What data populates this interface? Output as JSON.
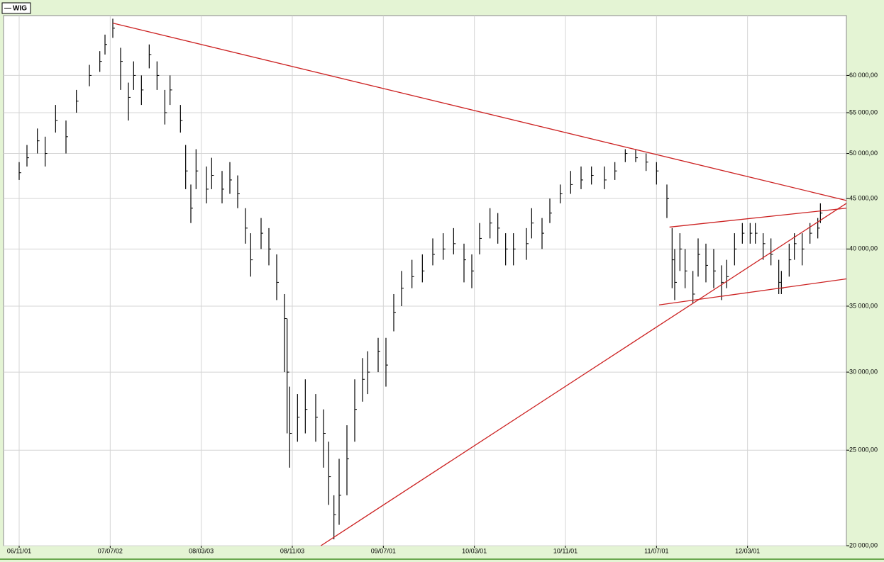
{
  "chart_data": {
    "type": "hlc",
    "name": "WIG",
    "color": "#000000",
    "log_scale": true,
    "grid": true,
    "legend": "top-left",
    "x": [
      0,
      3,
      7,
      10,
      14,
      18,
      22,
      27,
      31,
      33,
      36,
      39,
      42,
      44,
      47,
      50,
      53,
      56,
      58,
      62,
      64,
      66,
      68,
      72,
      74,
      78,
      81,
      84,
      87,
      89,
      93,
      96,
      99,
      102,
      103,
      104,
      107,
      110,
      114,
      117,
      119,
      121,
      123,
      126,
      129,
      132,
      134,
      138,
      141,
      144,
      147,
      151,
      155,
      159,
      163,
      167,
      171,
      174,
      177,
      181,
      184,
      187,
      190,
      195,
      197,
      201,
      204,
      208,
      212,
      216,
      220,
      225,
      229,
      233,
      237,
      241,
      245,
      249,
      251,
      252,
      254,
      256,
      259,
      261,
      264,
      267,
      270,
      272,
      275,
      278,
      281,
      283,
      286,
      289,
      292,
      293,
      296,
      298,
      301,
      304,
      307,
      308
    ],
    "high": [
      49000,
      51000,
      53000,
      52000,
      56000,
      54000,
      58000,
      61500,
      63500,
      66000,
      68500,
      64000,
      59000,
      62000,
      60000,
      64500,
      62000,
      58000,
      60000,
      56000,
      51000,
      46500,
      50500,
      48500,
      49500,
      48000,
      49000,
      47500,
      44000,
      41500,
      43000,
      42000,
      39500,
      36000,
      34000,
      29000,
      28500,
      29500,
      28500,
      27500,
      25500,
      22500,
      24500,
      26500,
      29500,
      31000,
      31500,
      32500,
      32500,
      36000,
      38000,
      39000,
      39500,
      41000,
      41500,
      42000,
      40500,
      39500,
      42500,
      44000,
      43500,
      41500,
      41500,
      42000,
      44000,
      43000,
      45000,
      46500,
      48000,
      48500,
      48500,
      48500,
      49000,
      50500,
      50500,
      50000,
      49000,
      46500,
      42000,
      40000,
      41500,
      40000,
      38000,
      41000,
      40500,
      40000,
      38500,
      39000,
      41500,
      42500,
      42500,
      42500,
      41500,
      41000,
      39000,
      38000,
      40500,
      41500,
      41500,
      42500,
      43000,
      44500
    ],
    "low": [
      47000,
      48500,
      50000,
      48500,
      52500,
      50000,
      55000,
      58500,
      60500,
      63000,
      65500,
      58000,
      54000,
      58000,
      56000,
      61000,
      58000,
      53500,
      56000,
      52500,
      46000,
      42500,
      46000,
      44500,
      46000,
      44500,
      45500,
      44000,
      40500,
      37500,
      40000,
      38500,
      35500,
      30000,
      26000,
      24000,
      25500,
      26000,
      25500,
      24000,
      22000,
      20300,
      21000,
      22500,
      25500,
      28000,
      28500,
      30000,
      29000,
      33000,
      35000,
      36500,
      37000,
      38500,
      39000,
      39500,
      37000,
      36500,
      39500,
      41000,
      40500,
      38500,
      38500,
      39000,
      41000,
      40000,
      42500,
      44500,
      45500,
      46000,
      46500,
      46000,
      47000,
      49000,
      49000,
      48000,
      46500,
      43000,
      36500,
      35500,
      38000,
      36500,
      35200,
      37500,
      37000,
      36500,
      35500,
      36500,
      38500,
      40500,
      40500,
      40500,
      39000,
      38500,
      36000,
      36000,
      37500,
      39000,
      38500,
      40500,
      41000,
      42500
    ],
    "close": [
      47800,
      49500,
      51500,
      50000,
      54000,
      52000,
      56500,
      60000,
      62000,
      64500,
      67000,
      62000,
      57000,
      60000,
      58000,
      63000,
      60000,
      55000,
      58000,
      54000,
      48000,
      44000,
      48000,
      46000,
      47500,
      46000,
      47000,
      45500,
      42000,
      39000,
      41500,
      40000,
      37000,
      34000,
      30000,
      26000,
      27000,
      27500,
      27000,
      26000,
      23500,
      21500,
      22500,
      24500,
      27500,
      29500,
      30000,
      31500,
      30500,
      34500,
      36500,
      37500,
      38000,
      39500,
      40000,
      40500,
      39000,
      38000,
      41000,
      42500,
      42000,
      40000,
      40000,
      40500,
      42500,
      41500,
      43500,
      45500,
      46500,
      47000,
      47500,
      47000,
      48000,
      50000,
      49500,
      49000,
      48000,
      45000,
      39000,
      37000,
      40000,
      38000,
      36000,
      39500,
      38500,
      38000,
      37000,
      37500,
      40000,
      41500,
      41500,
      41500,
      40500,
      39500,
      37000,
      36500,
      39000,
      40500,
      40000,
      41500,
      42000,
      43500
    ],
    "xlim": [
      -6,
      318
    ],
    "xticks": [
      {
        "value": 0,
        "label": "06/11/01"
      },
      {
        "value": 35,
        "label": "07/07/02"
      },
      {
        "value": 70,
        "label": "08/03/03"
      },
      {
        "value": 105,
        "label": "08/11/03"
      },
      {
        "value": 140,
        "label": "09/07/01"
      },
      {
        "value": 175,
        "label": "10/03/01"
      },
      {
        "value": 210,
        "label": "10/11/01"
      },
      {
        "value": 245,
        "label": "11/07/01"
      },
      {
        "value": 280,
        "label": "12/03/01"
      }
    ],
    "ylim": [
      20000,
      69000
    ],
    "yticks": [
      {
        "value": 20000,
        "label": "20 000,00"
      },
      {
        "value": 25000,
        "label": "25 000,00"
      },
      {
        "value": 30000,
        "label": "30 000,00"
      },
      {
        "value": 35000,
        "label": "35 000,00"
      },
      {
        "value": 40000,
        "label": "40 000,00"
      },
      {
        "value": 45000,
        "label": "45 000,00"
      },
      {
        "value": 50000,
        "label": "50 000,00"
      },
      {
        "value": 55000,
        "label": "55 000,00"
      },
      {
        "value": 60000,
        "label": "60 000,00"
      }
    ],
    "trendlines": [
      {
        "x": [
          36,
          318
        ],
        "y": [
          67800,
          44800
        ],
        "color": "#cc2222"
      },
      {
        "x": [
          116,
          318
        ],
        "y": [
          20000,
          44500
        ],
        "color": "#cc2222"
      },
      {
        "x": [
          250,
          318
        ],
        "y": [
          42100,
          44000
        ],
        "color": "#cc2222"
      },
      {
        "x": [
          246,
          318
        ],
        "y": [
          35100,
          37300
        ],
        "color": "#cc2222"
      }
    ]
  }
}
